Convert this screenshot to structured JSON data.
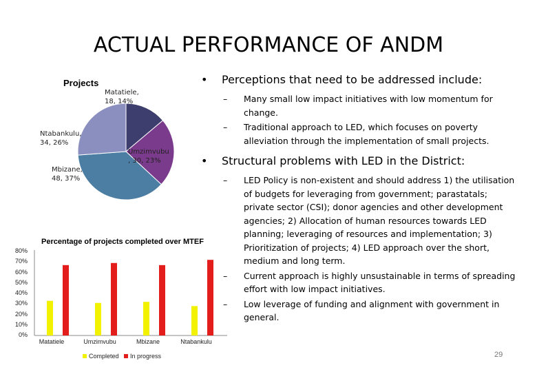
{
  "slide": {
    "title": "ACTUAL PERFORMANCE OF ANDM",
    "page_number": "29"
  },
  "pie_chart": {
    "type": "pie",
    "title": "Projects",
    "slices": [
      {
        "name": "Matatiele",
        "value": 18,
        "label_line1": "Matatiele,",
        "label_line2": "18, 14%",
        "color": "#3d3d6e"
      },
      {
        "name": "Umzimvubu",
        "value": 30,
        "label_line1": "Umzimvubu",
        "label_line2": ", 30, 23%",
        "color": "#7b3b8c"
      },
      {
        "name": "Mbizane",
        "value": 48,
        "label_line1": "Mbizane,",
        "label_line2": "48, 37%",
        "color": "#4c7ea3"
      },
      {
        "name": "Ntabankulu",
        "value": 34,
        "label_line1": "Ntabankulu,",
        "label_line2": "34, 26%",
        "color": "#8a8fbf"
      }
    ]
  },
  "chart_data": {
    "type": "bar",
    "title": "Percentage of projects completed over MTEF",
    "categories": [
      "Matatiele",
      "Umzimvubu",
      "Mbizane",
      "Ntabankulu"
    ],
    "series": [
      {
        "name": "Completed",
        "values": [
          33,
          31,
          32,
          28
        ],
        "color": "#f2f200"
      },
      {
        "name": "In progress",
        "values": [
          67,
          69,
          67,
          72
        ],
        "color": "#e31c1c"
      }
    ],
    "yticks": [
      "0%",
      "10%",
      "20%",
      "30%",
      "40%",
      "50%",
      "60%",
      "70%",
      "80%"
    ],
    "ylim": [
      0,
      80
    ],
    "legend_position": "bottom"
  },
  "content": {
    "bullets": [
      {
        "text": "Perceptions that need to be addressed include:",
        "subs": [
          "Many small low impact initiatives with low momentum for change.",
          "Traditional approach to LED, which focuses on poverty alleviation through the implementation of small projects."
        ]
      },
      {
        "text": "Structural problems with LED in the District:",
        "subs": [
          "LED Policy is non-existent and should address 1) the utilisation of budgets for leveraging from government; parastatals; private sector (CSI); donor agencies and other development agencies; 2) Allocation of human resources towards LED planning; leveraging of resources and implementation; 3) Prioritization of projects; 4) LED approach over the short, medium and long term.",
          "Current approach is highly unsustainable in terms of spreading effort with low impact initiatives.",
          "Low leverage of funding and alignment with government in general."
        ]
      }
    ],
    "bullet_symbol": "•",
    "dash_symbol": "–"
  }
}
